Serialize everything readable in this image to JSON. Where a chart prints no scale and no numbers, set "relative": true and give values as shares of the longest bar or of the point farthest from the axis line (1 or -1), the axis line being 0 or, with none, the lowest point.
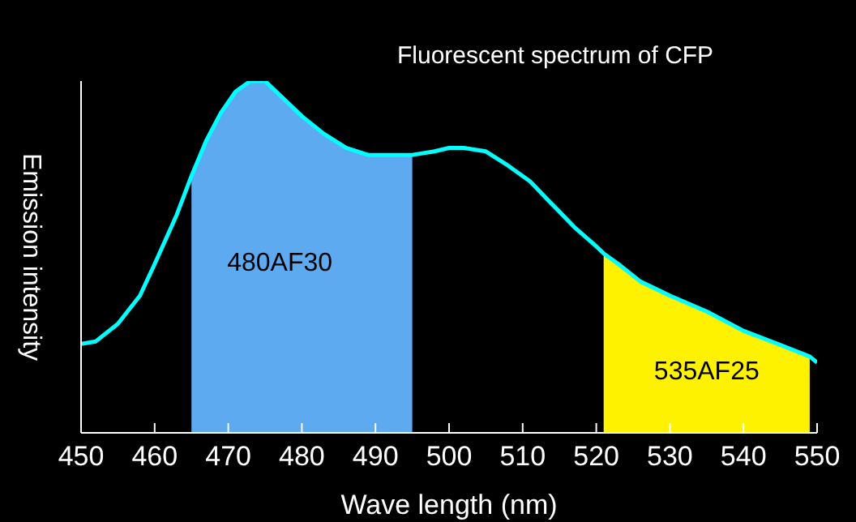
{
  "chart_data": {
    "type": "line",
    "title": "Fluorescent spectrum of CFP",
    "xlabel": "Wave length (nm)",
    "ylabel": "Emission intensity",
    "relative": true,
    "xlim": [
      450,
      550
    ],
    "xticks": [
      450,
      460,
      470,
      480,
      490,
      500,
      510,
      520,
      530,
      540,
      550
    ],
    "series": [
      {
        "type": "area",
        "name": "480AF30",
        "color": "#5eaaf0",
        "x": [
          465,
          467,
          469,
          471,
          473,
          475,
          477,
          480,
          483,
          486,
          489,
          492,
          495
        ],
        "values": [
          0.73,
          0.83,
          0.91,
          0.97,
          1.0,
          1.0,
          0.96,
          0.9,
          0.85,
          0.81,
          0.79,
          0.79,
          0.79
        ]
      },
      {
        "type": "area",
        "name": "535AF25",
        "color": "#fff200",
        "x": [
          521,
          523,
          526,
          530,
          535,
          540,
          545,
          549
        ],
        "values": [
          0.51,
          0.48,
          0.43,
          0.39,
          0.345,
          0.29,
          0.25,
          0.217
        ]
      },
      {
        "color": "#00ffff",
        "x": [
          450,
          452,
          455,
          458,
          460,
          463,
          465,
          467,
          469,
          471,
          473,
          475,
          477,
          480,
          483,
          486,
          489,
          492,
          495,
          498,
          500,
          502,
          505,
          508,
          511,
          514,
          517,
          520,
          521,
          523,
          526,
          530,
          535,
          540,
          545,
          549,
          550
        ],
        "values": [
          0.253,
          0.26,
          0.31,
          0.39,
          0.48,
          0.62,
          0.73,
          0.83,
          0.91,
          0.97,
          1.0,
          1.0,
          0.96,
          0.9,
          0.85,
          0.81,
          0.79,
          0.79,
          0.79,
          0.8,
          0.81,
          0.81,
          0.8,
          0.76,
          0.715,
          0.65,
          0.585,
          0.53,
          0.51,
          0.48,
          0.43,
          0.39,
          0.345,
          0.29,
          0.25,
          0.217,
          0.2
        ]
      }
    ]
  }
}
